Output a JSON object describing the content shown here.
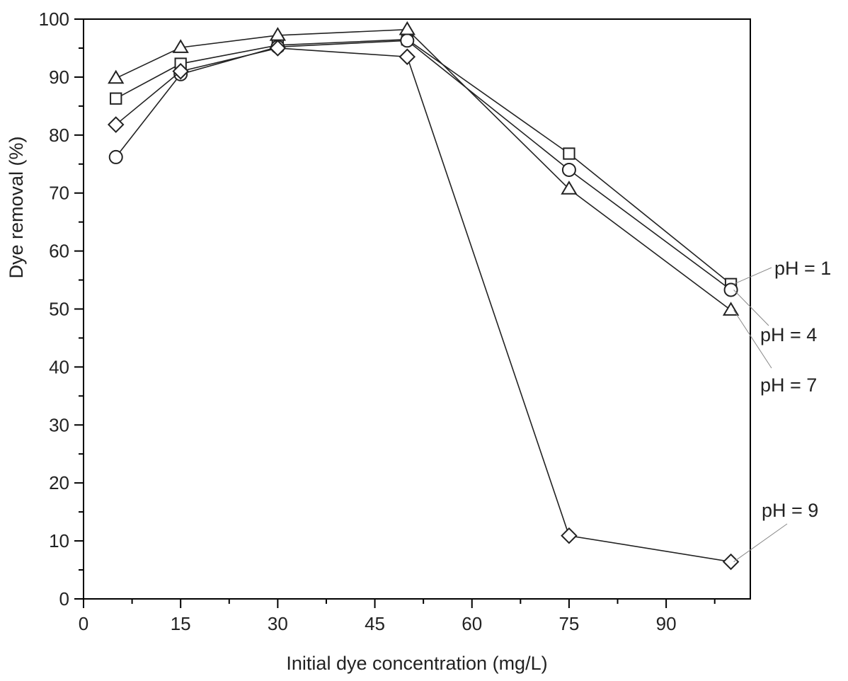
{
  "chart_data": {
    "type": "line",
    "title": "",
    "xlabel": "Initial dye concentration (mg/L)",
    "ylabel": "Dye removal (%)",
    "xlim": [
      0,
      103
    ],
    "ylim": [
      0,
      100
    ],
    "xticks": [
      0,
      15,
      30,
      45,
      60,
      75,
      90
    ],
    "yticks": [
      0,
      10,
      20,
      30,
      40,
      50,
      60,
      70,
      80,
      90,
      100
    ],
    "grid": false,
    "legend": "direct labels at right",
    "series": [
      {
        "name": "pH = 1",
        "marker": "square",
        "x": [
          5,
          15,
          30,
          50,
          75,
          100
        ],
        "y": [
          86.3,
          92.3,
          95.5,
          96.5,
          76.8,
          54.3
        ]
      },
      {
        "name": "pH = 4",
        "marker": "circle",
        "x": [
          5,
          15,
          30,
          50,
          75,
          100
        ],
        "y": [
          76.2,
          90.5,
          95.2,
          96.3,
          74.0,
          53.3
        ]
      },
      {
        "name": "pH = 7",
        "marker": "triangle",
        "x": [
          5,
          15,
          30,
          50,
          75,
          100
        ],
        "y": [
          89.8,
          95.1,
          97.2,
          98.2,
          70.7,
          49.8
        ]
      },
      {
        "name": "pH = 9",
        "marker": "diamond",
        "x": [
          5,
          15,
          30,
          50,
          75,
          100
        ],
        "y": [
          81.8,
          91.0,
          95.0,
          93.5,
          10.9,
          6.4
        ]
      }
    ]
  }
}
